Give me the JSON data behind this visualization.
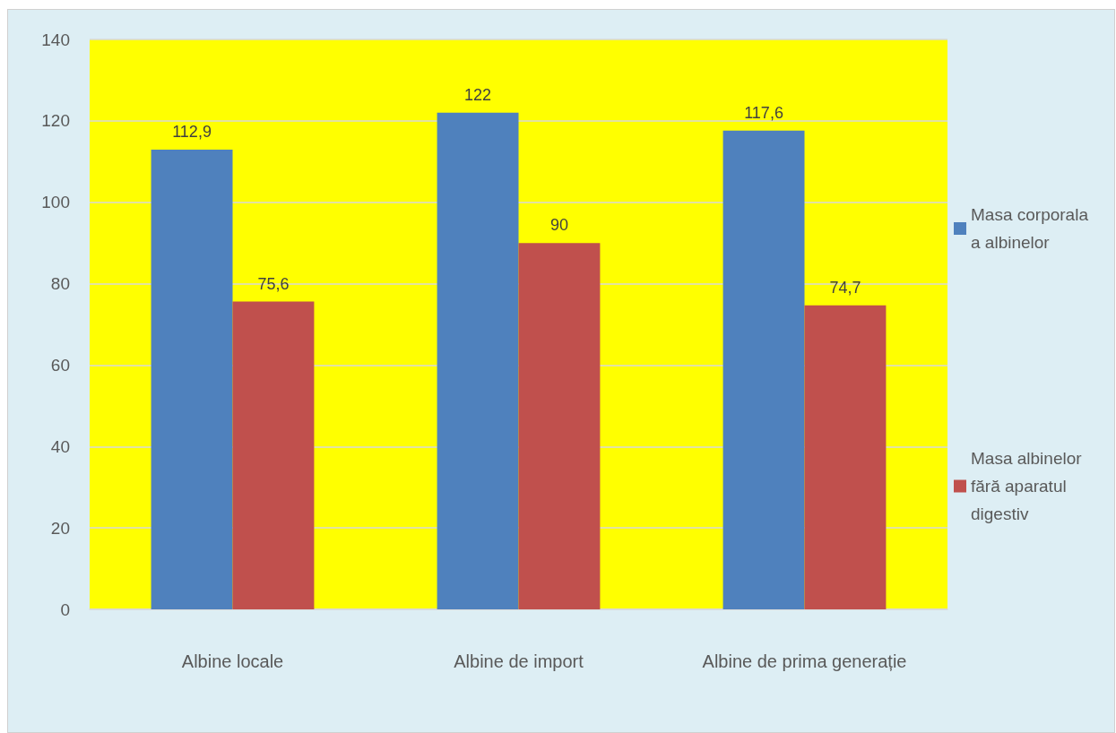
{
  "chart_data": {
    "type": "bar",
    "categories": [
      "Albine locale",
      "Albine de import",
      "Albine de prima generație"
    ],
    "series": [
      {
        "name": "Masa corporala a albinelor",
        "color": "#4f81bd",
        "values": [
          112.9,
          122,
          117.6
        ],
        "value_labels": [
          "112,9",
          "122",
          "117,6"
        ]
      },
      {
        "name": "Masa albinelor fără aparatul digestiv",
        "color": "#c0504d",
        "values": [
          75.6,
          90,
          74.7
        ],
        "value_labels": [
          "75,6",
          "90",
          "74,7"
        ]
      }
    ],
    "ylim": [
      0,
      140
    ],
    "yticks": [
      0,
      20,
      40,
      60,
      80,
      100,
      120,
      140
    ],
    "grid": "y",
    "legend": "right"
  }
}
